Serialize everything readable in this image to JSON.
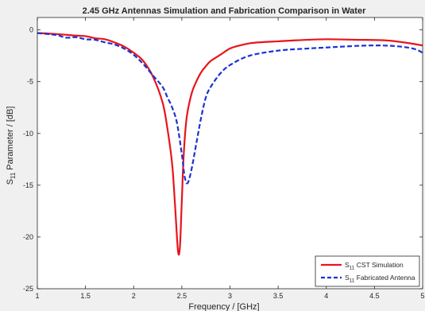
{
  "chart_data": {
    "type": "line",
    "title": "2.45 GHz Antennas Simulation and Fabrication Comparison in Water",
    "xlabel": "Frequency / [GHz]",
    "ylabel": {
      "base": "S",
      "sub": "11",
      "rest": " Parameter / [dB]"
    },
    "xlim": [
      1,
      5
    ],
    "ylim": [
      -25,
      1.2
    ],
    "xticks": [
      1,
      1.5,
      2,
      2.5,
      3,
      3.5,
      4,
      4.5,
      5
    ],
    "xtick_labels": [
      "1",
      "1.5",
      "2",
      "2.5",
      "3",
      "3.5",
      "4",
      "4.5",
      "5"
    ],
    "yticks": [
      0,
      -5,
      -10,
      -15,
      -20,
      -25
    ],
    "ytick_labels": [
      "0",
      "-5",
      "-10",
      "-15",
      "-20",
      "-25"
    ],
    "grid": false,
    "legend_position": "bottom-right",
    "series": [
      {
        "name": "CST Simulation",
        "legend_base": "S",
        "legend_sub": "11",
        "legend_rest": " CST Simulation",
        "color": "#e8141b",
        "dash": "solid",
        "x": [
          1.0,
          1.2,
          1.4,
          1.5,
          1.6,
          1.7,
          1.8,
          1.9,
          2.0,
          2.1,
          2.2,
          2.3,
          2.35,
          2.4,
          2.43,
          2.46,
          2.48,
          2.5,
          2.52,
          2.55,
          2.6,
          2.65,
          2.7,
          2.75,
          2.8,
          2.9,
          3.0,
          3.1,
          3.2,
          3.3,
          3.5,
          3.7,
          4.0,
          4.3,
          4.6,
          4.8,
          5.0
        ],
        "y": [
          -0.3,
          -0.4,
          -0.55,
          -0.6,
          -0.8,
          -0.9,
          -1.2,
          -1.6,
          -2.2,
          -3.0,
          -4.5,
          -7.0,
          -9.5,
          -13.0,
          -17.0,
          -21.3,
          -21.0,
          -16.5,
          -12.0,
          -8.5,
          -6.2,
          -5.0,
          -4.1,
          -3.5,
          -3.0,
          -2.4,
          -1.8,
          -1.5,
          -1.3,
          -1.2,
          -1.1,
          -1.0,
          -0.9,
          -0.95,
          -1.0,
          -1.2,
          -1.5
        ]
      },
      {
        "name": "Fabricated Antenna",
        "legend_base": "S",
        "legend_sub": "11",
        "legend_rest": " Fabricated Antenna",
        "color": "#1a33d6",
        "dash": "dashed",
        "x": [
          1.0,
          1.2,
          1.3,
          1.4,
          1.5,
          1.6,
          1.7,
          1.8,
          1.9,
          2.0,
          2.1,
          2.2,
          2.3,
          2.35,
          2.4,
          2.45,
          2.5,
          2.53,
          2.56,
          2.6,
          2.65,
          2.7,
          2.75,
          2.8,
          2.9,
          3.0,
          3.2,
          3.5,
          3.8,
          4.0,
          4.3,
          4.5,
          4.7,
          4.9,
          5.0
        ],
        "y": [
          -0.3,
          -0.5,
          -0.75,
          -0.7,
          -0.9,
          -0.95,
          -1.2,
          -1.4,
          -1.8,
          -2.4,
          -3.3,
          -4.4,
          -5.5,
          -6.5,
          -7.5,
          -9.0,
          -12.0,
          -14.2,
          -14.8,
          -13.5,
          -11.0,
          -8.5,
          -6.5,
          -5.5,
          -4.2,
          -3.4,
          -2.5,
          -2.0,
          -1.8,
          -1.7,
          -1.55,
          -1.5,
          -1.55,
          -1.8,
          -2.2
        ]
      }
    ]
  }
}
